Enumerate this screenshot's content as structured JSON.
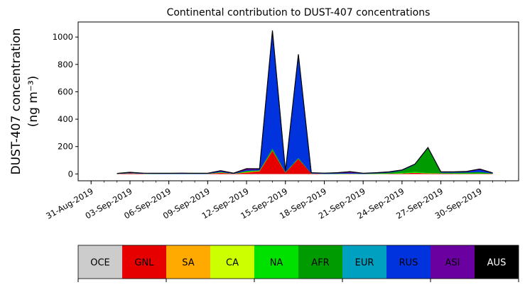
{
  "chart_data": {
    "type": "area",
    "stacked": true,
    "title": "Continental contribution to DUST-407 concentrations",
    "ylabel": "DUST-407 concentration",
    "ylabel_units": "(ng m⁻³)",
    "ylim": [
      -50,
      1110
    ],
    "yticks": [
      0,
      200,
      400,
      600,
      800,
      1000
    ],
    "xlim": [
      "2019-08-30",
      "2019-10-03"
    ],
    "xticks": [
      "31-Aug-2019",
      "03-Sep-2019",
      "06-Sep-2019",
      "09-Sep-2019",
      "12-Sep-2019",
      "15-Sep-2019",
      "18-Sep-2019",
      "21-Sep-2019",
      "24-Sep-2019",
      "27-Sep-2019",
      "30-Sep-2019"
    ],
    "x": [
      "2019-09-02",
      "2019-09-03",
      "2019-09-04",
      "2019-09-05",
      "2019-09-06",
      "2019-09-07",
      "2019-09-08",
      "2019-09-09",
      "2019-09-10",
      "2019-09-11",
      "2019-09-12",
      "2019-09-13",
      "2019-09-14",
      "2019-09-15",
      "2019-09-16",
      "2019-09-17",
      "2019-09-18",
      "2019-09-19",
      "2019-09-20",
      "2019-09-21",
      "2019-09-22",
      "2019-09-23",
      "2019-09-24",
      "2019-09-25",
      "2019-09-26",
      "2019-09-27",
      "2019-09-28",
      "2019-09-29",
      "2019-09-30",
      "2019-10-01"
    ],
    "series": [
      {
        "name": "OCE",
        "color": "#cccccc",
        "values": [
          0,
          0,
          0,
          0,
          0,
          0,
          0,
          0,
          0,
          0,
          0,
          0,
          0,
          0,
          0,
          0,
          0,
          0,
          0,
          0,
          0,
          0,
          0,
          0,
          0,
          0,
          0,
          0,
          0,
          0
        ]
      },
      {
        "name": "GNL",
        "color": "#e60000",
        "values": [
          2,
          5,
          3,
          2,
          2,
          2,
          2,
          2,
          8,
          3,
          10,
          20,
          170,
          10,
          110,
          5,
          2,
          2,
          3,
          2,
          2,
          3,
          5,
          10,
          5,
          5,
          3,
          3,
          3,
          3
        ]
      },
      {
        "name": "SA",
        "color": "#ffaa00",
        "values": [
          0,
          1,
          0,
          0,
          0,
          0,
          0,
          0,
          2,
          0,
          3,
          2,
          2,
          1,
          1,
          0,
          0,
          0,
          0,
          0,
          0,
          0,
          0,
          0,
          0,
          0,
          0,
          0,
          0,
          0
        ]
      },
      {
        "name": "CA",
        "color": "#ccff00",
        "values": [
          0,
          0,
          0,
          0,
          0,
          0,
          0,
          0,
          1,
          0,
          1,
          1,
          1,
          0,
          0,
          0,
          0,
          0,
          0,
          0,
          0,
          0,
          0,
          0,
          1,
          0,
          0,
          0,
          0,
          0
        ]
      },
      {
        "name": "NA",
        "color": "#00e100",
        "values": [
          0,
          1,
          0,
          0,
          0,
          0,
          0,
          0,
          2,
          0,
          3,
          2,
          2,
          1,
          1,
          0,
          0,
          0,
          0,
          0,
          1,
          2,
          5,
          8,
          3,
          0,
          2,
          3,
          3,
          0
        ]
      },
      {
        "name": "AFR",
        "color": "#009b00",
        "values": [
          0,
          0,
          0,
          0,
          0,
          0,
          0,
          0,
          1,
          0,
          5,
          2,
          10,
          2,
          5,
          0,
          0,
          1,
          1,
          0,
          2,
          5,
          15,
          50,
          180,
          5,
          5,
          5,
          10,
          2
        ]
      },
      {
        "name": "EUR",
        "color": "#00a0c0",
        "values": [
          0,
          0,
          0,
          0,
          0,
          0,
          0,
          0,
          1,
          0,
          2,
          1,
          3,
          1,
          2,
          0,
          0,
          0,
          0,
          0,
          0,
          0,
          0,
          0,
          0,
          0,
          0,
          0,
          0,
          0
        ]
      },
      {
        "name": "RUS",
        "color": "#0033dd",
        "values": [
          1,
          3,
          2,
          2,
          2,
          2,
          2,
          2,
          5,
          2,
          5,
          5,
          850,
          5,
          750,
          3,
          3,
          3,
          5,
          2,
          2,
          3,
          2,
          2,
          2,
          3,
          3,
          5,
          15,
          2
        ]
      },
      {
        "name": "ASI",
        "color": "#6a00a0",
        "values": [
          1,
          2,
          1,
          1,
          1,
          2,
          1,
          1,
          4,
          1,
          10,
          5,
          10,
          2,
          5,
          1,
          1,
          3,
          8,
          1,
          2,
          2,
          2,
          2,
          2,
          2,
          2,
          3,
          5,
          1
        ]
      },
      {
        "name": "AUS",
        "color": "#000000",
        "values": [
          0,
          0,
          0,
          0,
          0,
          0,
          0,
          0,
          0,
          0,
          0,
          0,
          0,
          0,
          0,
          0,
          0,
          0,
          0,
          0,
          0,
          0,
          0,
          0,
          0,
          0,
          0,
          0,
          0,
          0
        ]
      }
    ],
    "legend": {
      "placement": "bottom",
      "entries": [
        "OCE",
        "GNL",
        "SA",
        "CA",
        "NA",
        "AFR",
        "EUR",
        "RUS",
        "ASI",
        "AUS"
      ]
    }
  }
}
